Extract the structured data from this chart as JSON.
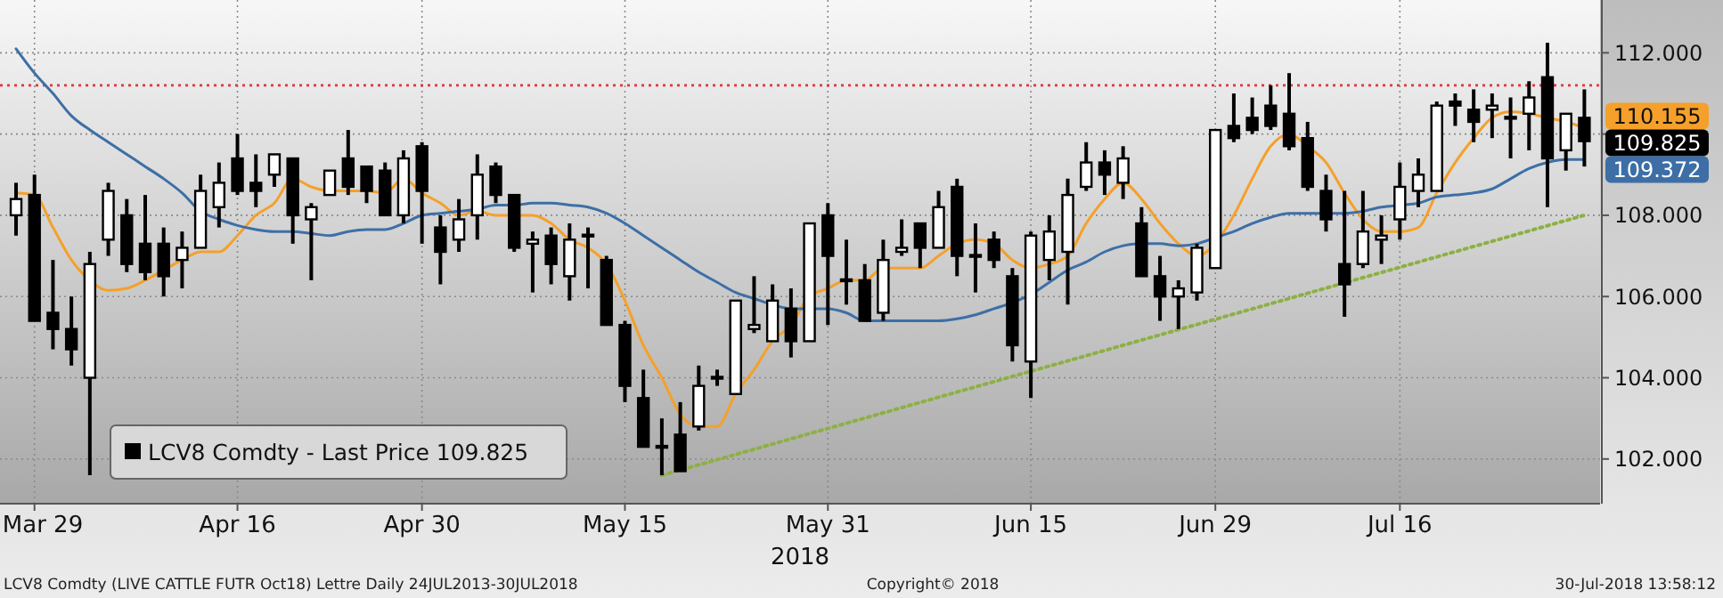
{
  "chart_data": {
    "type": "candlestick",
    "xlabel": "2018",
    "categories": [
      null,
      "Mar 29",
      null,
      null,
      null,
      null,
      null,
      null,
      null,
      null,
      null,
      null,
      "Apr 16",
      null,
      null,
      null,
      null,
      null,
      null,
      null,
      null,
      null,
      "Apr 30",
      null,
      null,
      null,
      null,
      null,
      null,
      null,
      null,
      null,
      null,
      "May 15",
      null,
      null,
      null,
      null,
      null,
      null,
      null,
      null,
      null,
      null,
      "May 31",
      null,
      null,
      null,
      null,
      null,
      null,
      null,
      null,
      null,
      null,
      "Jun 15",
      null,
      null,
      null,
      null,
      null,
      null,
      null,
      null,
      null,
      "Jun 29",
      null,
      null,
      null,
      null,
      null,
      null,
      null,
      null,
      null,
      "Jul 16",
      null,
      null,
      null,
      null,
      null,
      null,
      null,
      null,
      null,
      null
    ],
    "series": [
      {
        "name": "LCV8 Comdty - Last Price 109.825",
        "type": "candlestick",
        "color": "#000000",
        "ohlc": [
          [
            108.0,
            108.8,
            107.5,
            108.4
          ],
          [
            108.5,
            109.0,
            105.4,
            105.4
          ],
          [
            105.6,
            106.9,
            104.7,
            105.2
          ],
          [
            105.2,
            106.0,
            104.3,
            104.7
          ],
          [
            104.0,
            107.1,
            101.6,
            106.8
          ],
          [
            107.4,
            108.8,
            107.0,
            108.6
          ],
          [
            108.0,
            108.4,
            106.6,
            106.8
          ],
          [
            107.3,
            108.5,
            106.4,
            106.6
          ],
          [
            107.3,
            107.7,
            106.0,
            106.5
          ],
          [
            106.9,
            107.6,
            106.2,
            107.2
          ],
          [
            107.2,
            109.0,
            107.2,
            108.6
          ],
          [
            108.2,
            109.3,
            107.7,
            108.8
          ],
          [
            109.4,
            110.0,
            108.5,
            108.6
          ],
          [
            108.8,
            109.5,
            108.2,
            108.6
          ],
          [
            109.0,
            109.5,
            108.7,
            109.5
          ],
          [
            109.4,
            109.4,
            107.3,
            108.0
          ],
          [
            107.9,
            108.3,
            106.4,
            108.2
          ],
          [
            108.5,
            109.1,
            108.5,
            109.1
          ],
          [
            109.4,
            110.1,
            108.5,
            108.7
          ],
          [
            109.2,
            109.2,
            108.3,
            108.6
          ],
          [
            109.1,
            109.3,
            108.0,
            108.0
          ],
          [
            108.0,
            109.6,
            107.8,
            109.4
          ],
          [
            109.7,
            109.8,
            107.3,
            108.6
          ],
          [
            107.7,
            108.0,
            106.3,
            107.1
          ],
          [
            107.4,
            108.4,
            107.1,
            107.9
          ],
          [
            108.0,
            109.5,
            107.4,
            109.0
          ],
          [
            109.2,
            109.3,
            108.3,
            108.5
          ],
          [
            108.5,
            108.5,
            107.1,
            107.2
          ],
          [
            107.3,
            107.6,
            106.1,
            107.4
          ],
          [
            107.5,
            107.7,
            106.3,
            106.8
          ],
          [
            106.5,
            107.8,
            105.9,
            107.4
          ],
          [
            107.5,
            107.7,
            106.2,
            107.5
          ],
          [
            106.9,
            107.0,
            105.3,
            105.3
          ],
          [
            105.3,
            105.4,
            103.4,
            103.8
          ],
          [
            103.5,
            104.2,
            102.3,
            102.3
          ],
          [
            102.3,
            103.0,
            101.6,
            102.3
          ],
          [
            102.6,
            103.4,
            101.7,
            101.7
          ],
          [
            102.8,
            104.3,
            102.7,
            103.8
          ],
          [
            104.0,
            104.2,
            103.8,
            104.0
          ],
          [
            103.6,
            105.9,
            103.6,
            105.9
          ],
          [
            105.2,
            106.5,
            105.1,
            105.3
          ],
          [
            104.9,
            106.3,
            104.9,
            105.9
          ],
          [
            105.7,
            106.2,
            104.5,
            104.9
          ],
          [
            104.9,
            107.8,
            104.9,
            107.8
          ],
          [
            108.0,
            108.3,
            105.3,
            107.0
          ],
          [
            106.4,
            107.4,
            105.8,
            106.4
          ],
          [
            106.4,
            106.8,
            105.4,
            105.4
          ],
          [
            105.6,
            107.4,
            105.4,
            106.9
          ],
          [
            107.1,
            107.9,
            107.0,
            107.2
          ],
          [
            107.8,
            107.8,
            106.7,
            107.2
          ],
          [
            107.2,
            108.6,
            107.2,
            108.2
          ],
          [
            108.7,
            108.9,
            106.5,
            107.0
          ],
          [
            107.0,
            107.8,
            106.1,
            107.0
          ],
          [
            107.4,
            107.6,
            106.7,
            106.9
          ],
          [
            106.5,
            106.7,
            104.4,
            104.8
          ],
          [
            104.4,
            107.6,
            103.5,
            107.5
          ],
          [
            106.9,
            108.0,
            106.4,
            107.6
          ],
          [
            107.1,
            108.9,
            105.8,
            108.5
          ],
          [
            108.7,
            109.8,
            108.6,
            109.3
          ],
          [
            109.3,
            109.6,
            108.5,
            109.0
          ],
          [
            108.8,
            109.7,
            108.4,
            109.4
          ],
          [
            107.8,
            108.2,
            106.5,
            106.5
          ],
          [
            106.5,
            107.0,
            105.4,
            106.0
          ],
          [
            106.0,
            106.4,
            105.2,
            106.2
          ],
          [
            106.1,
            107.3,
            105.9,
            107.2
          ],
          [
            106.7,
            110.1,
            106.7,
            110.1
          ],
          [
            110.2,
            111.0,
            109.8,
            109.9
          ],
          [
            110.4,
            110.9,
            110.0,
            110.1
          ],
          [
            110.7,
            111.2,
            110.1,
            110.2
          ],
          [
            110.5,
            111.5,
            109.6,
            109.7
          ],
          [
            109.9,
            110.3,
            108.6,
            108.7
          ],
          [
            108.6,
            109.0,
            107.6,
            107.9
          ],
          [
            106.8,
            108.6,
            105.5,
            106.3
          ],
          [
            106.8,
            108.6,
            106.7,
            107.6
          ],
          [
            107.4,
            108.0,
            106.8,
            107.5
          ],
          [
            107.9,
            109.3,
            107.4,
            108.7
          ],
          [
            108.6,
            109.4,
            108.2,
            109.0
          ],
          [
            108.6,
            110.8,
            108.6,
            110.7
          ],
          [
            110.8,
            111.0,
            110.2,
            110.7
          ],
          [
            110.6,
            111.1,
            109.8,
            110.3
          ],
          [
            110.6,
            111.0,
            109.9,
            110.7
          ],
          [
            110.4,
            110.9,
            109.4,
            110.4
          ],
          [
            110.5,
            111.3,
            109.6,
            110.9
          ],
          [
            111.4,
            112.25,
            108.2,
            109.4
          ],
          [
            109.6,
            110.5,
            109.1,
            110.5
          ],
          [
            110.4,
            111.1,
            109.2,
            109.825
          ]
        ]
      },
      {
        "type": "line",
        "color": "#f5a02a",
        "values": [
          108.55,
          108.5,
          107.7,
          106.9,
          106.4,
          106.15,
          106.2,
          106.4,
          106.65,
          106.9,
          107.1,
          107.1,
          107.5,
          108.0,
          108.3,
          108.9,
          108.7,
          108.6,
          108.6,
          108.6,
          108.55,
          108.9,
          108.55,
          108.3,
          108.0,
          108.1,
          108.0,
          108.0,
          108.0,
          107.8,
          107.4,
          107.2,
          106.8,
          105.9,
          104.8,
          104.0,
          103.1,
          102.8,
          102.8,
          103.6,
          104.2,
          104.9,
          105.3,
          106.0,
          106.2,
          106.4,
          106.4,
          106.7,
          106.7,
          106.7,
          107.0,
          107.3,
          107.4,
          107.3,
          106.9,
          106.7,
          106.8,
          107.0,
          107.8,
          108.4,
          108.8,
          108.4,
          107.8,
          107.3,
          107.0,
          107.3,
          108.0,
          108.9,
          109.7,
          110.0,
          109.7,
          109.3,
          108.55,
          107.9,
          107.6,
          107.6,
          107.7,
          108.55,
          109.3,
          109.9,
          110.4,
          110.55,
          110.5,
          110.4,
          110.3,
          110.155
        ]
      },
      {
        "type": "line",
        "color": "#3d6fa6",
        "values": [
          112.1,
          111.5,
          111.0,
          110.45,
          110.1,
          109.8,
          109.5,
          109.2,
          108.9,
          108.55,
          108.1,
          107.9,
          107.75,
          107.65,
          107.6,
          107.6,
          107.55,
          107.5,
          107.6,
          107.65,
          107.65,
          107.8,
          108.0,
          108.05,
          108.1,
          108.15,
          108.25,
          108.25,
          108.3,
          108.3,
          108.25,
          108.2,
          108.05,
          107.8,
          107.5,
          107.2,
          106.9,
          106.6,
          106.35,
          106.1,
          105.95,
          105.8,
          105.7,
          105.7,
          105.7,
          105.6,
          105.4,
          105.4,
          105.4,
          105.4,
          105.4,
          105.45,
          105.55,
          105.7,
          105.85,
          106.05,
          106.35,
          106.65,
          106.85,
          107.1,
          107.25,
          107.3,
          107.3,
          107.25,
          107.3,
          107.45,
          107.6,
          107.8,
          107.95,
          108.05,
          108.05,
          108.05,
          108.05,
          108.1,
          108.2,
          108.25,
          108.3,
          108.45,
          108.5,
          108.55,
          108.65,
          108.9,
          109.15,
          109.3,
          109.372,
          109.372
        ]
      },
      {
        "type": "line",
        "color": "#8db043",
        "line_style": "dotted",
        "values": [
          null,
          null,
          null,
          null,
          null,
          null,
          null,
          null,
          null,
          null,
          null,
          null,
          null,
          null,
          null,
          null,
          null,
          null,
          null,
          null,
          null,
          null,
          null,
          null,
          null,
          null,
          null,
          null,
          null,
          null,
          null,
          null,
          null,
          null,
          null,
          101.6,
          null,
          null,
          null,
          null,
          null,
          null,
          null,
          null,
          null,
          null,
          null,
          null,
          null,
          null,
          null,
          null,
          null,
          null,
          null,
          null,
          null,
          null,
          null,
          null,
          null,
          null,
          null,
          null,
          null,
          null,
          null,
          null,
          null,
          null,
          null,
          null,
          null,
          null,
          null,
          null,
          null,
          null,
          null,
          null,
          null,
          null,
          null,
          null,
          null,
          108.0
        ]
      }
    ],
    "ylim": [
      100.9,
      113.3
    ],
    "yticks": [
      {
        "value": 102,
        "label": "102.000"
      },
      {
        "value": 104,
        "label": "104.000"
      },
      {
        "value": 106,
        "label": "106.000"
      },
      {
        "value": 108,
        "label": "108.000"
      },
      {
        "value": 110,
        "label": null
      },
      {
        "value": 112,
        "label": "112.000"
      }
    ],
    "ref_lines": [
      {
        "axis": "y",
        "value": 111.2,
        "color": "#e8323c",
        "line_style": "dotted"
      }
    ],
    "annotations": [
      "109.825",
      "110.155",
      "109.372",
      "LCV8 Comdty (LIVE CATTLE FUTR  Oct18) Lettre  Daily 24JUL2013-30JUL2018",
      "Copyright© 2018",
      "30-Jul-2018 13:58:12"
    ],
    "grid": true,
    "legend": "bottom left"
  }
}
